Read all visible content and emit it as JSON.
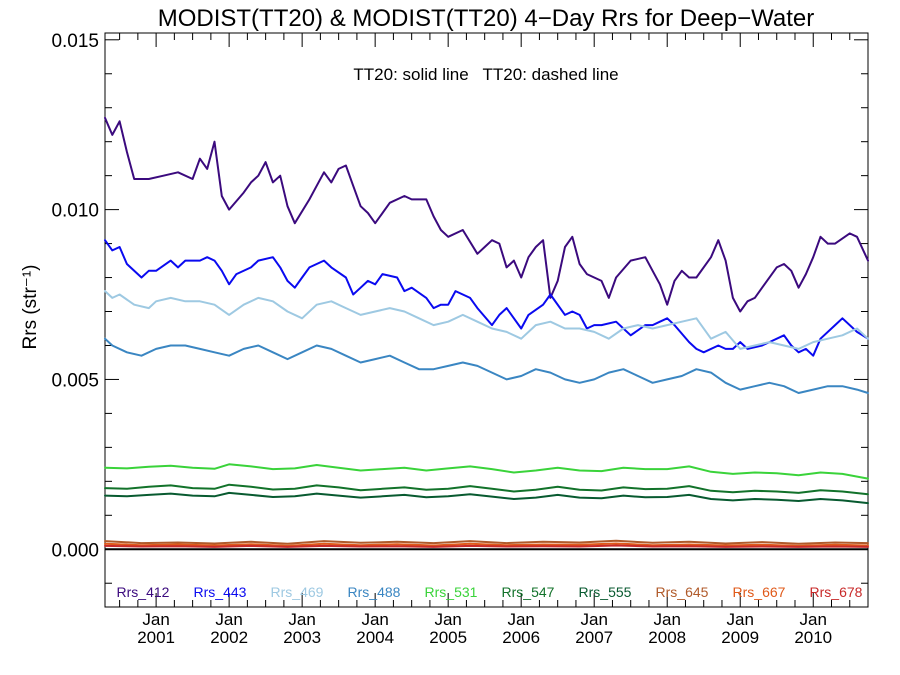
{
  "chart_data": {
    "type": "line",
    "title": "MODIST(TT20) & MODIST(TT20) 4−Day Rrs for Deep−Water",
    "annotation": "TT20: solid line   TT20: dashed line",
    "ylabel": "Rrs (str⁻¹)",
    "xlabel": "",
    "xlim": [
      2000.3,
      2010.75
    ],
    "ylim": [
      -0.0017,
      0.0152
    ],
    "y_ticks": [
      "0.000",
      "0.005",
      "0.010",
      "0.015"
    ],
    "x_ticks": [
      {
        "month": "Jan",
        "year": "2001"
      },
      {
        "month": "Jan",
        "year": "2002"
      },
      {
        "month": "Jan",
        "year": "2003"
      },
      {
        "month": "Jan",
        "year": "2004"
      },
      {
        "month": "Jan",
        "year": "2005"
      },
      {
        "month": "Jan",
        "year": "2006"
      },
      {
        "month": "Jan",
        "year": "2007"
      },
      {
        "month": "Jan",
        "year": "2008"
      },
      {
        "month": "Jan",
        "year": "2009"
      },
      {
        "month": "Jan",
        "year": "2010"
      }
    ],
    "zero_line": true,
    "grid": false,
    "legend_position": "bottom",
    "series": [
      {
        "name": "Rrs_412",
        "color": "#3b0a7e",
        "x": [
          2000.3,
          2000.4,
          2000.5,
          2000.6,
          2000.7,
          2000.9,
          2001.1,
          2001.3,
          2001.5,
          2001.6,
          2001.7,
          2001.8,
          2001.9,
          2002.0,
          2002.2,
          2002.3,
          2002.4,
          2002.5,
          2002.6,
          2002.7,
          2002.8,
          2002.9,
          2003.1,
          2003.2,
          2003.3,
          2003.4,
          2003.5,
          2003.6,
          2003.7,
          2003.8,
          2003.9,
          2004.0,
          2004.2,
          2004.4,
          2004.5,
          2004.7,
          2004.8,
          2004.9,
          2005.0,
          2005.2,
          2005.4,
          2005.5,
          2005.6,
          2005.7,
          2005.8,
          2005.9,
          2006.0,
          2006.1,
          2006.2,
          2006.3,
          2006.4,
          2006.5,
          2006.6,
          2006.7,
          2006.8,
          2006.9,
          2007.1,
          2007.2,
          2007.3,
          2007.5,
          2007.7,
          2007.8,
          2007.9,
          2008.0,
          2008.1,
          2008.2,
          2008.3,
          2008.4,
          2008.6,
          2008.7,
          2008.8,
          2008.9,
          2009.0,
          2009.1,
          2009.2,
          2009.3,
          2009.5,
          2009.6,
          2009.7,
          2009.8,
          2009.9,
          2010.0,
          2010.1,
          2010.2,
          2010.3,
          2010.5,
          2010.6,
          2010.75
        ],
        "values": [
          0.0127,
          0.0122,
          0.0126,
          0.0117,
          0.0109,
          0.0109,
          0.011,
          0.0111,
          0.0109,
          0.0115,
          0.0112,
          0.012,
          0.0104,
          0.01,
          0.0105,
          0.0108,
          0.011,
          0.0114,
          0.0108,
          0.011,
          0.0101,
          0.0096,
          0.0103,
          0.0107,
          0.0111,
          0.0108,
          0.0112,
          0.0113,
          0.0107,
          0.0101,
          0.0099,
          0.0096,
          0.0102,
          0.0104,
          0.0103,
          0.0103,
          0.0098,
          0.0094,
          0.0092,
          0.0094,
          0.0087,
          0.0089,
          0.0091,
          0.009,
          0.0083,
          0.0085,
          0.008,
          0.0086,
          0.0089,
          0.0091,
          0.0074,
          0.0079,
          0.0089,
          0.0092,
          0.0084,
          0.0081,
          0.0079,
          0.0074,
          0.008,
          0.0085,
          0.0086,
          0.0082,
          0.0078,
          0.0072,
          0.0079,
          0.0082,
          0.008,
          0.008,
          0.0086,
          0.0091,
          0.0085,
          0.0074,
          0.007,
          0.0073,
          0.0074,
          0.0077,
          0.0083,
          0.0084,
          0.0082,
          0.0077,
          0.0081,
          0.0086,
          0.0092,
          0.009,
          0.009,
          0.0093,
          0.0092,
          0.0085
        ]
      },
      {
        "name": "Rrs_443",
        "color": "#0a0af0",
        "x": [
          2000.3,
          2000.4,
          2000.5,
          2000.6,
          2000.8,
          2000.9,
          2001.0,
          2001.2,
          2001.3,
          2001.4,
          2001.6,
          2001.7,
          2001.8,
          2001.9,
          2002.0,
          2002.1,
          2002.3,
          2002.4,
          2002.6,
          2002.7,
          2002.8,
          2002.9,
          2003.0,
          2003.1,
          2003.3,
          2003.4,
          2003.6,
          2003.7,
          2003.8,
          2003.9,
          2004.0,
          2004.1,
          2004.3,
          2004.4,
          2004.5,
          2004.7,
          2004.8,
          2004.9,
          2005.0,
          2005.1,
          2005.3,
          2005.4,
          2005.6,
          2005.7,
          2005.8,
          2005.9,
          2006.0,
          2006.1,
          2006.3,
          2006.4,
          2006.6,
          2006.7,
          2006.8,
          2006.9,
          2007.0,
          2007.1,
          2007.3,
          2007.4,
          2007.5,
          2007.7,
          2007.8,
          2007.9,
          2008.0,
          2008.1,
          2008.3,
          2008.4,
          2008.5,
          2008.7,
          2008.8,
          2008.9,
          2009.0,
          2009.1,
          2009.3,
          2009.4,
          2009.6,
          2009.7,
          2009.8,
          2009.9,
          2010.0,
          2010.1,
          2010.3,
          2010.4,
          2010.6,
          2010.75
        ],
        "values": [
          0.0091,
          0.0088,
          0.0089,
          0.0084,
          0.008,
          0.0082,
          0.0082,
          0.0085,
          0.0083,
          0.0085,
          0.0085,
          0.0086,
          0.0085,
          0.0082,
          0.0078,
          0.0081,
          0.0083,
          0.0085,
          0.0086,
          0.0083,
          0.0079,
          0.0077,
          0.008,
          0.0083,
          0.0085,
          0.0083,
          0.008,
          0.0075,
          0.0077,
          0.0079,
          0.0078,
          0.0081,
          0.008,
          0.0076,
          0.0077,
          0.0074,
          0.0071,
          0.0072,
          0.0072,
          0.0076,
          0.0074,
          0.0071,
          0.0066,
          0.0069,
          0.0071,
          0.0068,
          0.0065,
          0.0069,
          0.0072,
          0.0075,
          0.0069,
          0.007,
          0.0069,
          0.0065,
          0.0066,
          0.0066,
          0.0067,
          0.0065,
          0.0063,
          0.0066,
          0.0066,
          0.0067,
          0.0068,
          0.0066,
          0.0061,
          0.0059,
          0.0058,
          0.006,
          0.0059,
          0.0059,
          0.0061,
          0.0059,
          0.006,
          0.0061,
          0.0063,
          0.006,
          0.0058,
          0.0059,
          0.0057,
          0.0062,
          0.0066,
          0.0068,
          0.0064,
          0.0062
        ]
      },
      {
        "name": "Rrs_469",
        "color": "#9ec9e2",
        "x": [
          2000.3,
          2000.4,
          2000.5,
          2000.7,
          2000.9,
          2001.0,
          2001.2,
          2001.4,
          2001.6,
          2001.8,
          2002.0,
          2002.2,
          2002.4,
          2002.6,
          2002.8,
          2003.0,
          2003.2,
          2003.4,
          2003.6,
          2003.8,
          2004.0,
          2004.2,
          2004.4,
          2004.6,
          2004.8,
          2005.0,
          2005.2,
          2005.4,
          2005.6,
          2005.8,
          2006.0,
          2006.2,
          2006.4,
          2006.6,
          2006.8,
          2007.0,
          2007.2,
          2007.4,
          2007.6,
          2007.8,
          2008.0,
          2008.2,
          2008.4,
          2008.6,
          2008.8,
          2009.0,
          2009.2,
          2009.4,
          2009.6,
          2009.8,
          2010.0,
          2010.2,
          2010.4,
          2010.6,
          2010.75
        ],
        "values": [
          0.0076,
          0.0074,
          0.0075,
          0.0072,
          0.0071,
          0.0073,
          0.0074,
          0.0073,
          0.0073,
          0.0072,
          0.0069,
          0.0072,
          0.0074,
          0.0073,
          0.007,
          0.0068,
          0.0072,
          0.0073,
          0.0071,
          0.0069,
          0.007,
          0.0071,
          0.007,
          0.0068,
          0.0066,
          0.0067,
          0.0069,
          0.0067,
          0.0065,
          0.0064,
          0.0062,
          0.0066,
          0.0067,
          0.0065,
          0.0065,
          0.0064,
          0.0062,
          0.0065,
          0.0066,
          0.0065,
          0.0066,
          0.0067,
          0.0068,
          0.0062,
          0.0064,
          0.0059,
          0.006,
          0.0061,
          0.006,
          0.0059,
          0.0061,
          0.0062,
          0.0063,
          0.0065,
          0.0062
        ]
      },
      {
        "name": "Rrs_488",
        "color": "#3a86c2",
        "x": [
          2000.3,
          2000.4,
          2000.6,
          2000.8,
          2001.0,
          2001.2,
          2001.4,
          2001.6,
          2001.8,
          2002.0,
          2002.2,
          2002.4,
          2002.6,
          2002.8,
          2003.0,
          2003.2,
          2003.4,
          2003.6,
          2003.8,
          2004.0,
          2004.2,
          2004.4,
          2004.6,
          2004.8,
          2005.0,
          2005.2,
          2005.4,
          2005.6,
          2005.8,
          2006.0,
          2006.2,
          2006.4,
          2006.6,
          2006.8,
          2007.0,
          2007.2,
          2007.4,
          2007.6,
          2007.8,
          2008.0,
          2008.2,
          2008.4,
          2008.6,
          2008.8,
          2009.0,
          2009.2,
          2009.4,
          2009.6,
          2009.8,
          2010.0,
          2010.2,
          2010.4,
          2010.6,
          2010.75
        ],
        "values": [
          0.0062,
          0.006,
          0.0058,
          0.0057,
          0.0059,
          0.006,
          0.006,
          0.0059,
          0.0058,
          0.0057,
          0.0059,
          0.006,
          0.0058,
          0.0056,
          0.0058,
          0.006,
          0.0059,
          0.0057,
          0.0055,
          0.0056,
          0.0057,
          0.0055,
          0.0053,
          0.0053,
          0.0054,
          0.0055,
          0.0054,
          0.0052,
          0.005,
          0.0051,
          0.0053,
          0.0052,
          0.005,
          0.0049,
          0.005,
          0.0052,
          0.0053,
          0.0051,
          0.0049,
          0.005,
          0.0051,
          0.0053,
          0.0052,
          0.0049,
          0.0047,
          0.0048,
          0.0049,
          0.0048,
          0.0046,
          0.0047,
          0.0048,
          0.0048,
          0.0047,
          0.0046
        ]
      },
      {
        "name": "Rrs_531",
        "color": "#3ad33a",
        "x": [
          2000.3,
          2000.6,
          2000.9,
          2001.2,
          2001.5,
          2001.8,
          2002.0,
          2002.3,
          2002.6,
          2002.9,
          2003.2,
          2003.5,
          2003.8,
          2004.1,
          2004.4,
          2004.7,
          2005.0,
          2005.3,
          2005.6,
          2005.9,
          2006.2,
          2006.5,
          2006.8,
          2007.1,
          2007.4,
          2007.7,
          2008.0,
          2008.3,
          2008.6,
          2008.9,
          2009.2,
          2009.5,
          2009.8,
          2010.1,
          2010.4,
          2010.75
        ],
        "values": [
          0.0024,
          0.00238,
          0.00243,
          0.00246,
          0.0024,
          0.00237,
          0.0025,
          0.00244,
          0.00236,
          0.00238,
          0.00248,
          0.0024,
          0.00232,
          0.00236,
          0.0024,
          0.00232,
          0.00238,
          0.00244,
          0.00236,
          0.00226,
          0.00232,
          0.0024,
          0.00232,
          0.0023,
          0.0024,
          0.00236,
          0.00236,
          0.00244,
          0.00228,
          0.00222,
          0.00226,
          0.00224,
          0.00218,
          0.00226,
          0.00222,
          0.00208
        ]
      },
      {
        "name": "Rrs_547",
        "color": "#12722a",
        "x": [
          2000.3,
          2000.6,
          2000.9,
          2001.2,
          2001.5,
          2001.8,
          2002.0,
          2002.3,
          2002.6,
          2002.9,
          2003.2,
          2003.5,
          2003.8,
          2004.1,
          2004.4,
          2004.7,
          2005.0,
          2005.3,
          2005.6,
          2005.9,
          2006.2,
          2006.5,
          2006.8,
          2007.1,
          2007.4,
          2007.7,
          2008.0,
          2008.3,
          2008.6,
          2008.9,
          2009.2,
          2009.5,
          2009.8,
          2010.1,
          2010.4,
          2010.75
        ],
        "values": [
          0.0018,
          0.00178,
          0.00184,
          0.00188,
          0.0018,
          0.00178,
          0.0019,
          0.00184,
          0.00176,
          0.00178,
          0.00188,
          0.00182,
          0.00174,
          0.00178,
          0.00182,
          0.00175,
          0.00178,
          0.00186,
          0.00178,
          0.0017,
          0.00175,
          0.00184,
          0.00175,
          0.00173,
          0.00182,
          0.00177,
          0.00178,
          0.00186,
          0.00172,
          0.00168,
          0.00172,
          0.0017,
          0.00166,
          0.00174,
          0.0017,
          0.00162
        ]
      },
      {
        "name": "Rrs_555",
        "color": "#085a30",
        "x": [
          2000.3,
          2000.6,
          2000.9,
          2001.2,
          2001.5,
          2001.8,
          2002.0,
          2002.3,
          2002.6,
          2002.9,
          2003.2,
          2003.5,
          2003.8,
          2004.1,
          2004.4,
          2004.7,
          2005.0,
          2005.3,
          2005.6,
          2005.9,
          2006.2,
          2006.5,
          2006.8,
          2007.1,
          2007.4,
          2007.7,
          2008.0,
          2008.3,
          2008.6,
          2008.9,
          2009.2,
          2009.5,
          2009.8,
          2010.1,
          2010.4,
          2010.75
        ],
        "values": [
          0.00158,
          0.00156,
          0.0016,
          0.00164,
          0.00158,
          0.00156,
          0.00166,
          0.0016,
          0.00154,
          0.00156,
          0.00164,
          0.00158,
          0.00152,
          0.00156,
          0.0016,
          0.00153,
          0.00156,
          0.00162,
          0.00155,
          0.00148,
          0.00152,
          0.0016,
          0.00152,
          0.0015,
          0.00158,
          0.00153,
          0.00154,
          0.0016,
          0.00148,
          0.00144,
          0.00148,
          0.00146,
          0.00142,
          0.00148,
          0.00144,
          0.00136
        ]
      },
      {
        "name": "Rrs_645",
        "color": "#b05a2a",
        "x": [
          2000.3,
          2000.8,
          2001.3,
          2001.8,
          2002.3,
          2002.8,
          2003.3,
          2003.8,
          2004.3,
          2004.8,
          2005.3,
          2005.8,
          2006.3,
          2006.8,
          2007.3,
          2007.8,
          2008.3,
          2008.8,
          2009.3,
          2009.8,
          2010.3,
          2010.75
        ],
        "values": [
          0.00024,
          0.00018,
          0.0002,
          0.00017,
          0.00022,
          0.00016,
          0.00024,
          0.00019,
          0.00022,
          0.00018,
          0.00024,
          0.00018,
          0.00022,
          0.0002,
          0.00025,
          0.00019,
          0.00022,
          0.00017,
          0.00021,
          0.00016,
          0.0002,
          0.00018
        ]
      },
      {
        "name": "Rrs_667",
        "color": "#e05a1a",
        "x": [
          2000.3,
          2000.8,
          2001.3,
          2001.8,
          2002.3,
          2002.8,
          2003.3,
          2003.8,
          2004.3,
          2004.8,
          2005.3,
          2005.8,
          2006.3,
          2006.8,
          2007.3,
          2007.8,
          2008.3,
          2008.8,
          2009.3,
          2009.8,
          2010.3,
          2010.75
        ],
        "values": [
          0.00016,
          0.00012,
          0.00014,
          0.00011,
          0.00015,
          0.0001,
          0.00016,
          0.00012,
          0.00015,
          0.00011,
          0.00016,
          0.00012,
          0.00014,
          0.00013,
          0.00017,
          0.00012,
          0.00014,
          0.00011,
          0.00013,
          0.0001,
          0.00013,
          0.00011
        ]
      },
      {
        "name": "Rrs_678",
        "color": "#c82a2a",
        "x": [
          2000.3,
          2000.8,
          2001.3,
          2001.8,
          2002.3,
          2002.8,
          2003.3,
          2003.8,
          2004.3,
          2004.8,
          2005.3,
          2005.8,
          2006.3,
          2006.8,
          2007.3,
          2007.8,
          2008.3,
          2008.8,
          2009.3,
          2009.8,
          2010.3,
          2010.75
        ],
        "values": [
          0.0001,
          8e-05,
          9e-05,
          7e-05,
          0.0001,
          7e-05,
          0.0001,
          8e-05,
          9e-05,
          7e-05,
          0.0001,
          8e-05,
          9e-05,
          8e-05,
          0.00011,
          8e-05,
          9e-05,
          7e-05,
          8e-05,
          7e-05,
          8e-05,
          7e-05
        ]
      }
    ]
  }
}
